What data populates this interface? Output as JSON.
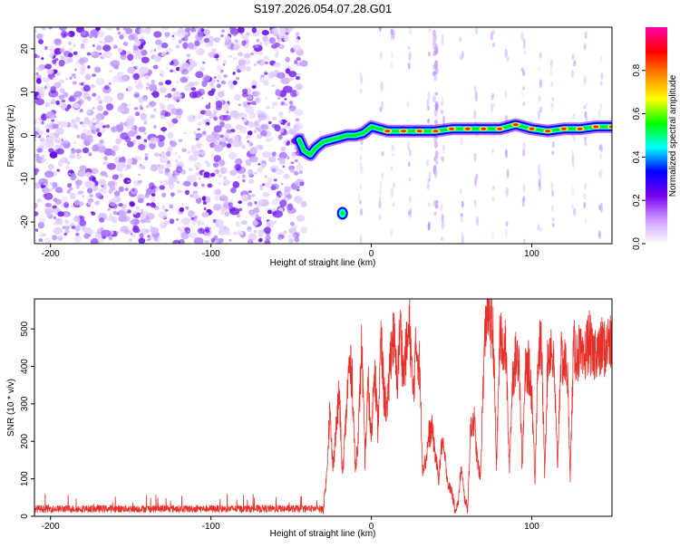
{
  "title": "S197.2026.054.07.28.G01",
  "chart_data": [
    {
      "type": "heatmap",
      "xlabel": "Height of straight line (km)",
      "ylabel": "Frequency (Hz)",
      "xlim": [
        -210,
        150
      ],
      "ylim": [
        -25,
        25
      ],
      "xticks": [
        -200,
        -100,
        0,
        100
      ],
      "yticks": [
        -20,
        -10,
        0,
        10,
        20
      ],
      "xtick_labels": [
        "-200",
        "-100",
        "0",
        "100"
      ],
      "ytick_labels": [
        "-20",
        "-10",
        "0",
        "10",
        "20"
      ],
      "colorbar": {
        "label": "Normalized spectral amplitude",
        "range": [
          0,
          1
        ],
        "ticks": [
          0.0,
          0.2,
          0.4,
          0.6,
          0.8
        ],
        "tick_labels": [
          "0.0",
          "0.2",
          "0.4",
          "0.6",
          "0.8"
        ],
        "colors": [
          "#ffffff",
          "#cc99ff",
          "#7700ee",
          "#0000ff",
          "#00ffff",
          "#00ff00",
          "#ffff00",
          "#ff8800",
          "#ff0000",
          "#ff00aa"
        ]
      },
      "noise_region_x": [
        -210,
        -42
      ],
      "signal_trace": {
        "x": [
          -45,
          -42,
          -38,
          -35,
          -30,
          -25,
          -20,
          -15,
          -10,
          -5,
          0,
          5,
          10,
          20,
          30,
          40,
          50,
          60,
          70,
          80,
          90,
          100,
          110,
          120,
          130,
          140,
          150
        ],
        "y": [
          -1,
          -3.5,
          -4.5,
          -3,
          -1.5,
          -1,
          -0.5,
          0,
          0,
          0.5,
          2,
          1.5,
          1,
          1,
          1,
          1,
          1.5,
          1.5,
          1.5,
          1.5,
          2.5,
          1.5,
          1,
          1.5,
          1.5,
          2,
          2
        ]
      },
      "isolated_spot": {
        "x": -18,
        "y": -18
      }
    },
    {
      "type": "line",
      "xlabel": "Height of straight line (km)",
      "ylabel": "SNR (10 * v/v)",
      "xlim": [
        -210,
        150
      ],
      "ylim": [
        0,
        580
      ],
      "xticks": [
        -200,
        -100,
        0,
        100
      ],
      "yticks": [
        0,
        100,
        200,
        300,
        400,
        500
      ],
      "xtick_labels": [
        "-200",
        "-100",
        "0",
        "100"
      ],
      "ytick_labels": [
        "0",
        "100",
        "200",
        "300",
        "400",
        "500"
      ],
      "color": "#e8302a",
      "series": [
        {
          "name": "SNR",
          "x": [
            -210,
            -30,
            -28,
            -26,
            -24,
            -22,
            -20,
            -18,
            -16,
            -14,
            -12,
            -10,
            -8,
            -6,
            -4,
            -2,
            0,
            2,
            4,
            6,
            8,
            10,
            12,
            14,
            16,
            18,
            20,
            22,
            24,
            26,
            28,
            30,
            32,
            34,
            36,
            38,
            40,
            42,
            44,
            46,
            48,
            50,
            52,
            54,
            56,
            58,
            60,
            62,
            64,
            66,
            68,
            70,
            72,
            74,
            76,
            78,
            80,
            82,
            84,
            86,
            88,
            90,
            92,
            94,
            96,
            98,
            100,
            102,
            104,
            106,
            108,
            110,
            112,
            114,
            116,
            118,
            120,
            122,
            124,
            126,
            128,
            130,
            132,
            134,
            136,
            138,
            140,
            142,
            144,
            146,
            148,
            150
          ],
          "y": [
            20,
            20,
            100,
            280,
            130,
            230,
            330,
            100,
            250,
            400,
            380,
            120,
            230,
            460,
            150,
            350,
            200,
            420,
            230,
            470,
            320,
            280,
            440,
            480,
            350,
            510,
            380,
            450,
            500,
            320,
            460,
            400,
            130,
            150,
            220,
            230,
            160,
            100,
            200,
            150,
            80,
            70,
            20,
            30,
            130,
            50,
            20,
            240,
            260,
            150,
            100,
            400,
            570,
            520,
            480,
            130,
            470,
            460,
            440,
            120,
            370,
            420,
            440,
            130,
            380,
            400,
            330,
            100,
            440,
            460,
            120,
            420,
            460,
            380,
            130,
            420,
            410,
            400,
            110,
            450,
            430,
            440,
            400,
            450,
            470,
            420,
            450,
            430,
            460,
            440,
            470,
            440
          ]
        }
      ]
    }
  ]
}
